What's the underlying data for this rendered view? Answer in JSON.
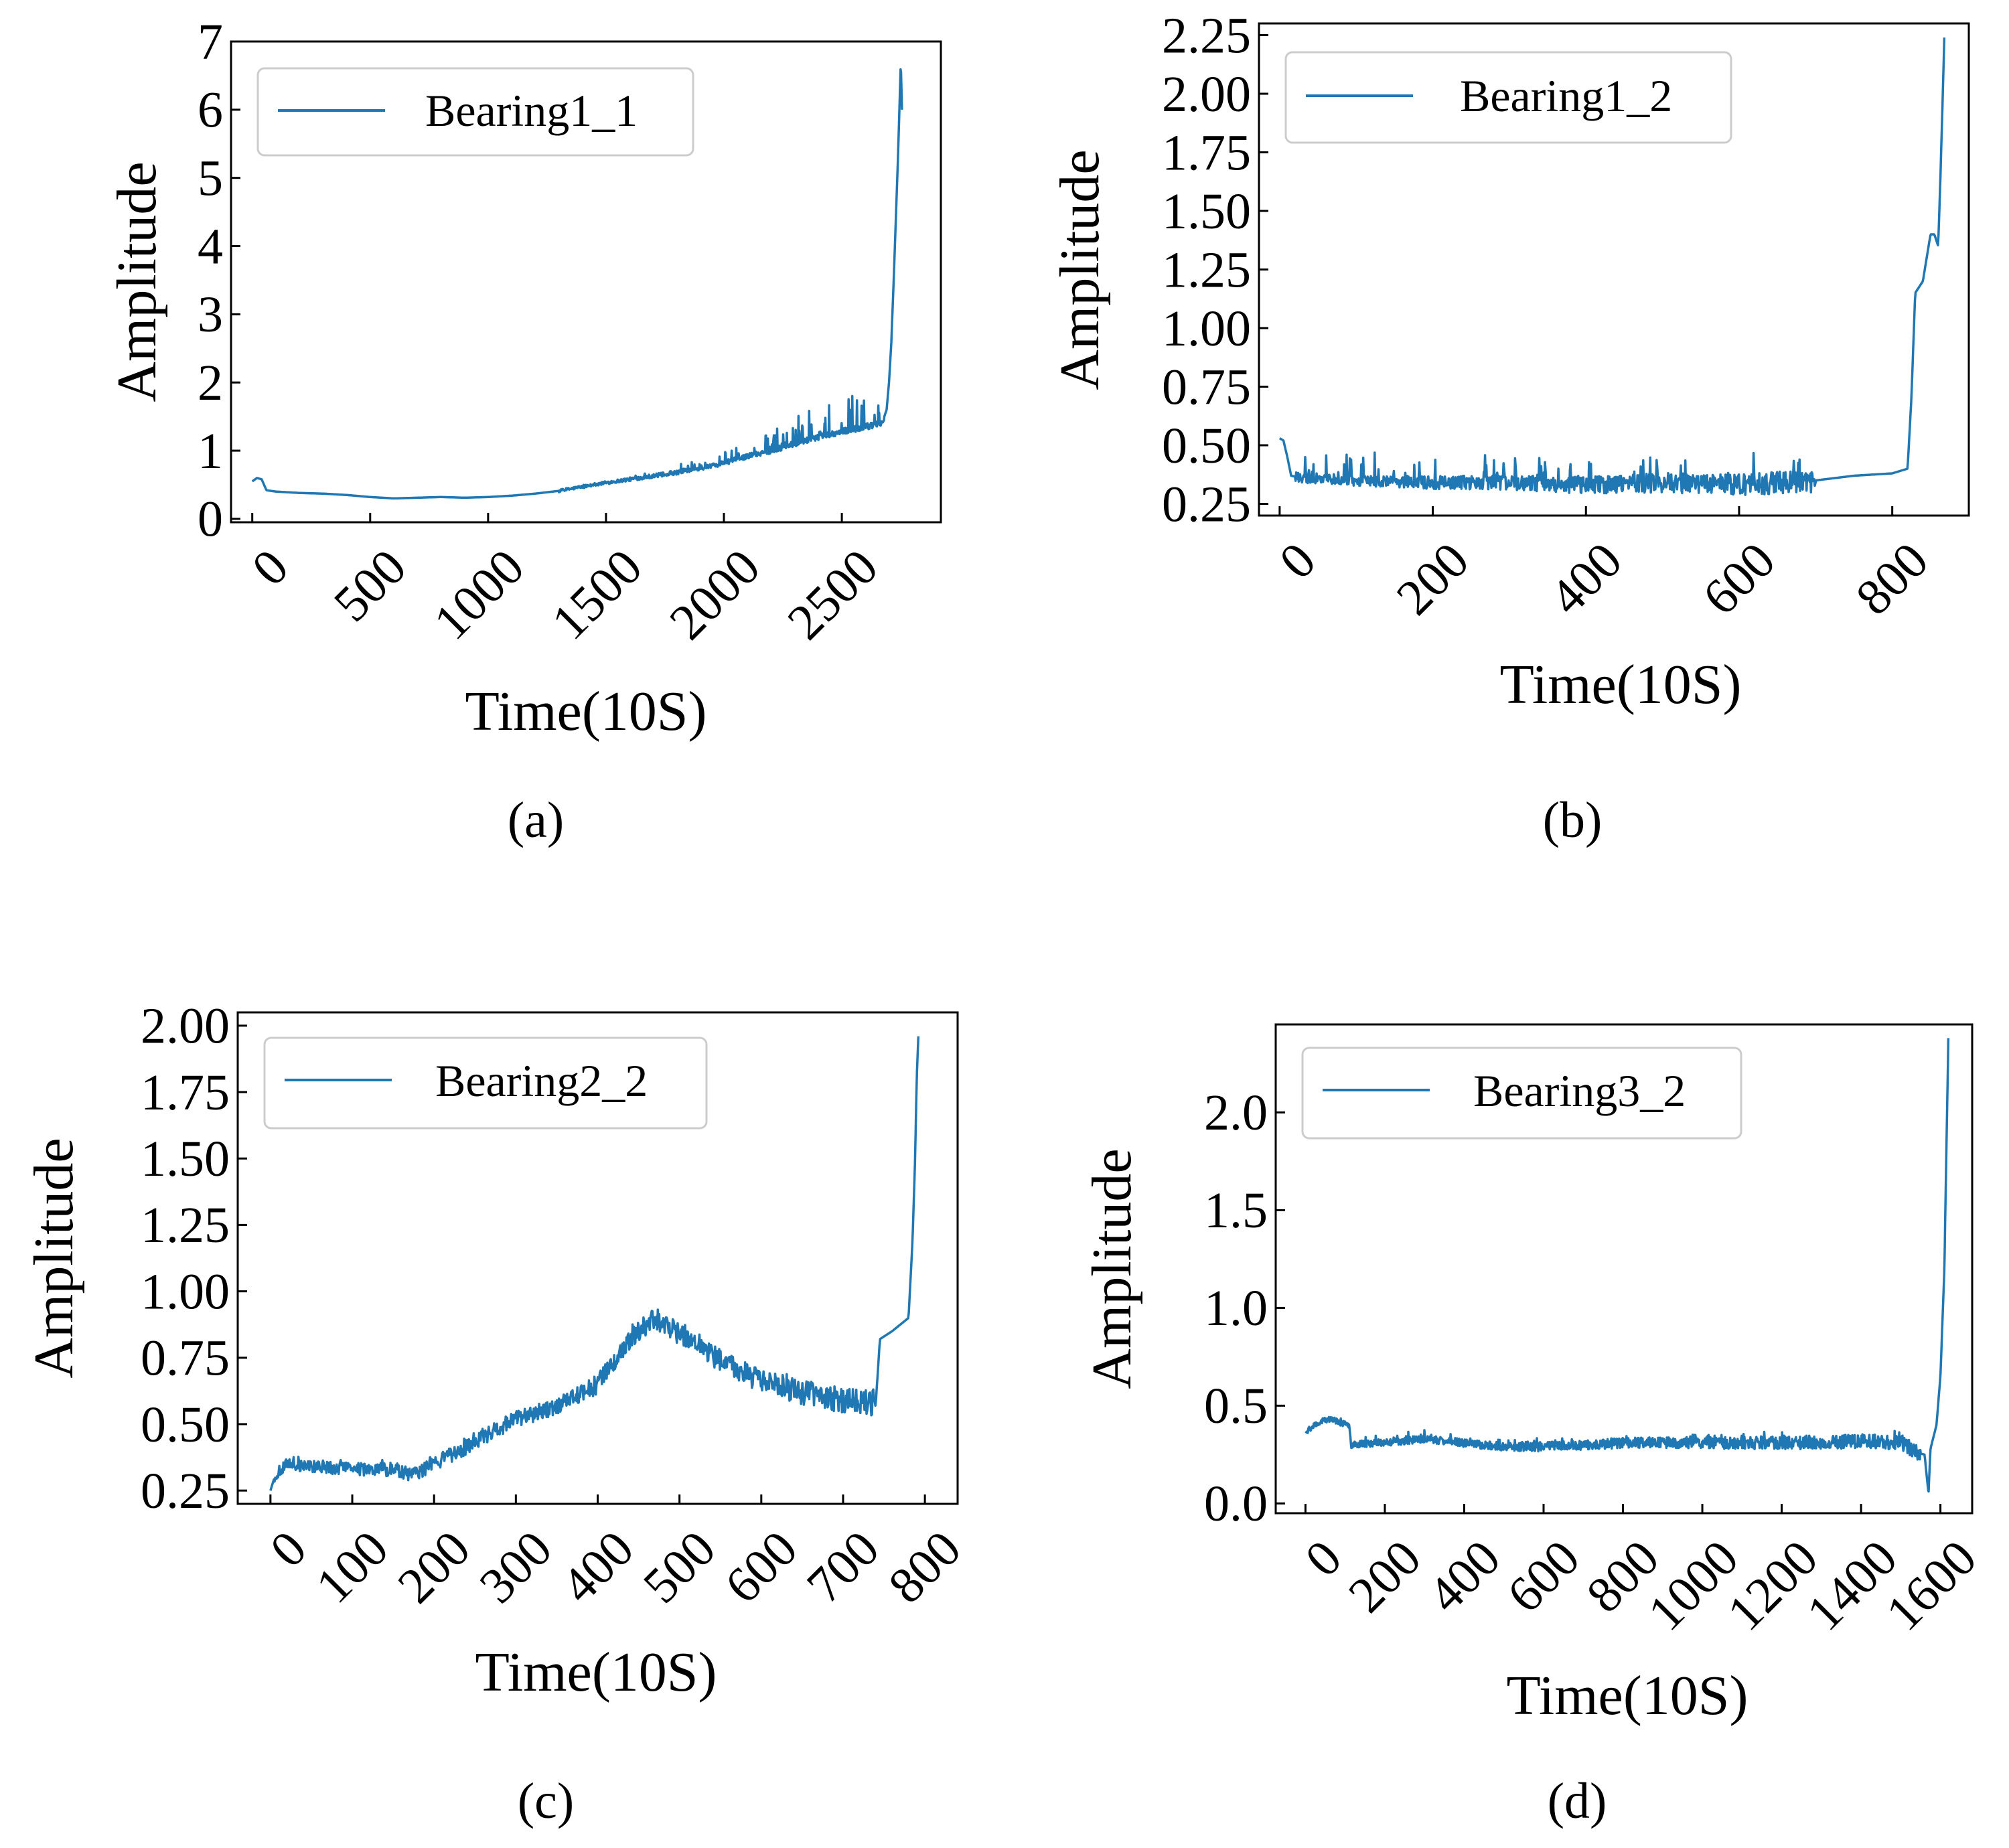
{
  "figure": {
    "line_color": "#1f77b4",
    "captions": [
      "(a)",
      "(b)",
      "(c)",
      "(d)"
    ]
  },
  "chart_data": [
    {
      "type": "line",
      "caption_letter": "a",
      "legend": "Bearing1_1",
      "xlabel": "Time(10S)",
      "ylabel": "Amplitude",
      "xlim": [
        -90,
        2920
      ],
      "ylim": [
        -0.05,
        7.0
      ],
      "xticks": [
        0,
        500,
        1000,
        1500,
        2000,
        2500
      ],
      "xtick_labels": [
        "0",
        "500",
        "1000",
        "1500",
        "2000",
        "2500"
      ],
      "yticks": [
        0,
        1,
        2,
        3,
        4,
        5,
        6,
        7
      ],
      "ytick_labels": [
        "0",
        "1",
        "2",
        "3",
        "4",
        "5",
        "6",
        "7"
      ],
      "series": [
        {
          "name": "Bearing1_1",
          "points": [
            [
              0,
              0.55
            ],
            [
              20,
              0.6
            ],
            [
              40,
              0.58
            ],
            [
              60,
              0.42
            ],
            [
              100,
              0.4
            ],
            [
              200,
              0.38
            ],
            [
              300,
              0.37
            ],
            [
              400,
              0.35
            ],
            [
              500,
              0.32
            ],
            [
              600,
              0.3
            ],
            [
              700,
              0.31
            ],
            [
              800,
              0.32
            ],
            [
              900,
              0.31
            ],
            [
              1000,
              0.32
            ],
            [
              1100,
              0.34
            ],
            [
              1200,
              0.37
            ],
            [
              1300,
              0.41
            ],
            [
              1400,
              0.47
            ],
            [
              1500,
              0.53
            ],
            [
              1600,
              0.58
            ],
            [
              1700,
              0.63
            ],
            [
              1800,
              0.68
            ],
            [
              1900,
              0.74
            ],
            [
              2000,
              0.82
            ],
            [
              2100,
              0.92
            ],
            [
              2200,
              1.0
            ],
            [
              2300,
              1.1
            ],
            [
              2400,
              1.2
            ],
            [
              2500,
              1.28
            ],
            [
              2600,
              1.35
            ],
            [
              2670,
              1.4
            ],
            [
              2690,
              1.6
            ],
            [
              2700,
              2.0
            ],
            [
              2710,
              2.6
            ],
            [
              2720,
              3.5
            ],
            [
              2730,
              4.5
            ],
            [
              2740,
              5.5
            ],
            [
              2750,
              6.7
            ],
            [
              2755,
              6.0
            ]
          ],
          "noise": [
            0.02,
            0.7
          ],
          "noise_range": [
            1300,
            2680
          ]
        }
      ]
    },
    {
      "type": "line",
      "caption_letter": "b",
      "legend": "Bearing1_2",
      "xlabel": "Time(10S)",
      "ylabel": "Amplitude",
      "xlim": [
        -27,
        900
      ],
      "ylim": [
        0.2,
        2.3
      ],
      "xticks": [
        0,
        200,
        400,
        600,
        800
      ],
      "xtick_labels": [
        "0",
        "200",
        "400",
        "600",
        "800"
      ],
      "yticks": [
        0.25,
        0.5,
        0.75,
        1.0,
        1.25,
        1.5,
        1.75,
        2.0,
        2.25
      ],
      "ytick_labels": [
        "0.25",
        "0.50",
        "0.75",
        "1.00",
        "1.25",
        "1.50",
        "1.75",
        "2.00",
        "2.25"
      ],
      "series": [
        {
          "name": "Bearing1_2",
          "points": [
            [
              0,
              0.53
            ],
            [
              5,
              0.52
            ],
            [
              10,
              0.45
            ],
            [
              15,
              0.37
            ],
            [
              30,
              0.36
            ],
            [
              100,
              0.35
            ],
            [
              200,
              0.34
            ],
            [
              300,
              0.34
            ],
            [
              400,
              0.33
            ],
            [
              500,
              0.34
            ],
            [
              600,
              0.33
            ],
            [
              700,
              0.35
            ],
            [
              750,
              0.37
            ],
            [
              800,
              0.38
            ],
            [
              820,
              0.4
            ],
            [
              825,
              0.7
            ],
            [
              830,
              1.15
            ],
            [
              840,
              1.2
            ],
            [
              845,
              1.3
            ],
            [
              850,
              1.4
            ],
            [
              855,
              1.4
            ],
            [
              860,
              1.35
            ],
            [
              863,
              1.65
            ],
            [
              866,
              2.0
            ],
            [
              868,
              2.24
            ]
          ],
          "noise": [
            0.02,
            0.18
          ],
          "noise_range": [
            20,
            700
          ]
        }
      ]
    },
    {
      "type": "line",
      "caption_letter": "c",
      "legend": "Bearing2_2",
      "xlabel": "Time(10S)",
      "ylabel": "Amplitude",
      "xlim": [
        -40,
        840
      ],
      "ylim": [
        0.2,
        2.05
      ],
      "xticks": [
        0,
        100,
        200,
        300,
        400,
        500,
        600,
        700,
        800
      ],
      "xtick_labels": [
        "0",
        "100",
        "200",
        "300",
        "400",
        "500",
        "600",
        "700",
        "800"
      ],
      "yticks": [
        0.25,
        0.5,
        0.75,
        1.0,
        1.25,
        1.5,
        1.75,
        2.0
      ],
      "ytick_labels": [
        "0.25",
        "0.50",
        "0.75",
        "1.00",
        "1.25",
        "1.50",
        "1.75",
        "2.00"
      ],
      "series": [
        {
          "name": "Bearing2_2",
          "points": [
            [
              0,
              0.25
            ],
            [
              5,
              0.3
            ],
            [
              10,
              0.32
            ],
            [
              20,
              0.35
            ],
            [
              50,
              0.34
            ],
            [
              100,
              0.33
            ],
            [
              150,
              0.33
            ],
            [
              175,
              0.31
            ],
            [
              200,
              0.35
            ],
            [
              250,
              0.43
            ],
            [
              300,
              0.52
            ],
            [
              350,
              0.57
            ],
            [
              400,
              0.65
            ],
            [
              440,
              0.82
            ],
            [
              470,
              0.9
            ],
            [
              500,
              0.84
            ],
            [
              550,
              0.74
            ],
            [
              600,
              0.66
            ],
            [
              650,
              0.62
            ],
            [
              700,
              0.59
            ],
            [
              740,
              0.58
            ],
            [
              745,
              0.82
            ],
            [
              760,
              0.85
            ],
            [
              780,
              0.9
            ],
            [
              785,
              1.2
            ],
            [
              788,
              1.5
            ],
            [
              790,
              1.8
            ],
            [
              792,
              1.96
            ]
          ],
          "noise": [
            0.02,
            0.03
          ],
          "noise_range": [
            5,
            740
          ]
        }
      ]
    },
    {
      "type": "line",
      "caption_letter": "d",
      "legend": "Bearing3_2",
      "xlabel": "Time(10S)",
      "ylabel": "Amplitude",
      "xlim": [
        -75,
        1680
      ],
      "ylim": [
        -0.05,
        2.45
      ],
      "xticks": [
        0,
        200,
        400,
        600,
        800,
        1000,
        1200,
        1400,
        1600
      ],
      "xtick_labels": [
        "0",
        "200",
        "400",
        "600",
        "800",
        "1000",
        "1200",
        "1400",
        "1600"
      ],
      "yticks": [
        0.0,
        0.5,
        1.0,
        1.5,
        2.0
      ],
      "ytick_labels": [
        "0.0",
        "0.5",
        "1.0",
        "1.5",
        "2.0"
      ],
      "series": [
        {
          "name": "Bearing3_2",
          "points": [
            [
              0,
              0.36
            ],
            [
              20,
              0.4
            ],
            [
              50,
              0.43
            ],
            [
              80,
              0.42
            ],
            [
              110,
              0.4
            ],
            [
              115,
              0.3
            ],
            [
              200,
              0.31
            ],
            [
              300,
              0.33
            ],
            [
              400,
              0.31
            ],
            [
              500,
              0.29
            ],
            [
              600,
              0.29
            ],
            [
              700,
              0.3
            ],
            [
              800,
              0.31
            ],
            [
              900,
              0.31
            ],
            [
              1000,
              0.31
            ],
            [
              1100,
              0.31
            ],
            [
              1200,
              0.31
            ],
            [
              1300,
              0.31
            ],
            [
              1400,
              0.32
            ],
            [
              1500,
              0.31
            ],
            [
              1540,
              0.26
            ],
            [
              1560,
              0.25
            ],
            [
              1570,
              0.05
            ],
            [
              1575,
              0.28
            ],
            [
              1590,
              0.4
            ],
            [
              1600,
              0.65
            ],
            [
              1610,
              1.2
            ],
            [
              1615,
              1.8
            ],
            [
              1620,
              2.38
            ]
          ],
          "noise": [
            0.015,
            0.05
          ],
          "noise_range": [
            5,
            1550
          ]
        }
      ]
    }
  ]
}
